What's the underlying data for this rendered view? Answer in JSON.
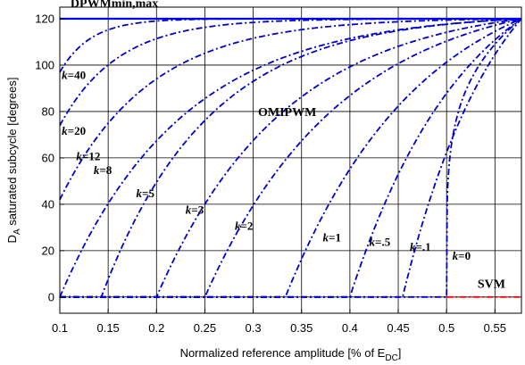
{
  "chart_data": {
    "type": "line",
    "title": "",
    "xlabel": {
      "main": "Normalized reference amplitude [% of E",
      "sub": "DC",
      "tail": "]"
    },
    "ylabel": {
      "main": "D",
      "sub": "A",
      "tail": " saturated subcycle [degrees]"
    },
    "xlim": [
      0.1,
      0.5774
    ],
    "ylim": [
      -7,
      125
    ],
    "x_ticks": [
      0.1,
      0.15,
      0.2,
      0.25,
      0.3,
      0.35,
      0.4,
      0.45,
      0.5,
      0.55
    ],
    "x_tick_labels": [
      "0.1",
      "0.15",
      "0.2",
      "0.25",
      "0.3",
      "0.35",
      "0.4",
      "0.45",
      "0.5",
      "0.55"
    ],
    "y_ticks": [
      0,
      20,
      40,
      60,
      80,
      100,
      120
    ],
    "y_tick_labels": [
      "0",
      "20",
      "40",
      "60",
      "80",
      "100",
      "120"
    ],
    "grid": true,
    "x_max": 0.5774,
    "series": [
      {
        "k": 0,
        "x0": 0.5
      },
      {
        "k": 0.1,
        "x0": 0.4545
      },
      {
        "k": 0.5,
        "x0": 0.4
      },
      {
        "k": 1,
        "x0": 0.3333
      },
      {
        "k": 2,
        "x0": 0.25
      },
      {
        "k": 3,
        "x0": 0.2
      },
      {
        "k": 5,
        "x0": 0.1429
      },
      {
        "k": 8,
        "x0": 0.1
      },
      {
        "k": 12,
        "x0": 0.1
      },
      {
        "k": 20,
        "x0": 0.1
      },
      {
        "k": 40,
        "x0": 0.1
      }
    ],
    "k_labels": [
      {
        "prefix": "k",
        "text": "=40",
        "x": 0.102,
        "y": 94
      },
      {
        "prefix": "k",
        "text": "=20",
        "x": 0.102,
        "y": 70
      },
      {
        "prefix": "k",
        "text": "=12",
        "x": 0.117,
        "y": 59
      },
      {
        "prefix": "k",
        "text": "=8",
        "x": 0.135,
        "y": 53
      },
      {
        "prefix": "k",
        "text": "=5",
        "x": 0.179,
        "y": 43
      },
      {
        "prefix": "k",
        "text": "=3",
        "x": 0.23,
        "y": 36
      },
      {
        "prefix": "k",
        "text": "=2",
        "x": 0.281,
        "y": 29
      },
      {
        "prefix": "k",
        "text": "=1",
        "x": 0.372,
        "y": 24
      },
      {
        "prefix": "k",
        "text": "=.5",
        "x": 0.42,
        "y": 22
      },
      {
        "prefix": "k",
        "text": "=.1",
        "x": 0.462,
        "y": 20
      },
      {
        "prefix": "k",
        "text": "=0",
        "x": 0.506,
        "y": 16
      }
    ],
    "annotations": {
      "dpwm": {
        "text": "DPWMmin,max",
        "x": 0.111,
        "y": 125
      },
      "omipwm": {
        "text": "OMIPWM",
        "x": 0.305,
        "y": 78
      },
      "svm": {
        "text": "SVM",
        "x": 0.532,
        "y": 4
      }
    },
    "colors": {
      "curves": "#0000CC",
      "dpwm_line": "#0000FF",
      "svm_line": "#FF0000",
      "grid": "#000000",
      "text": "#000000"
    }
  }
}
